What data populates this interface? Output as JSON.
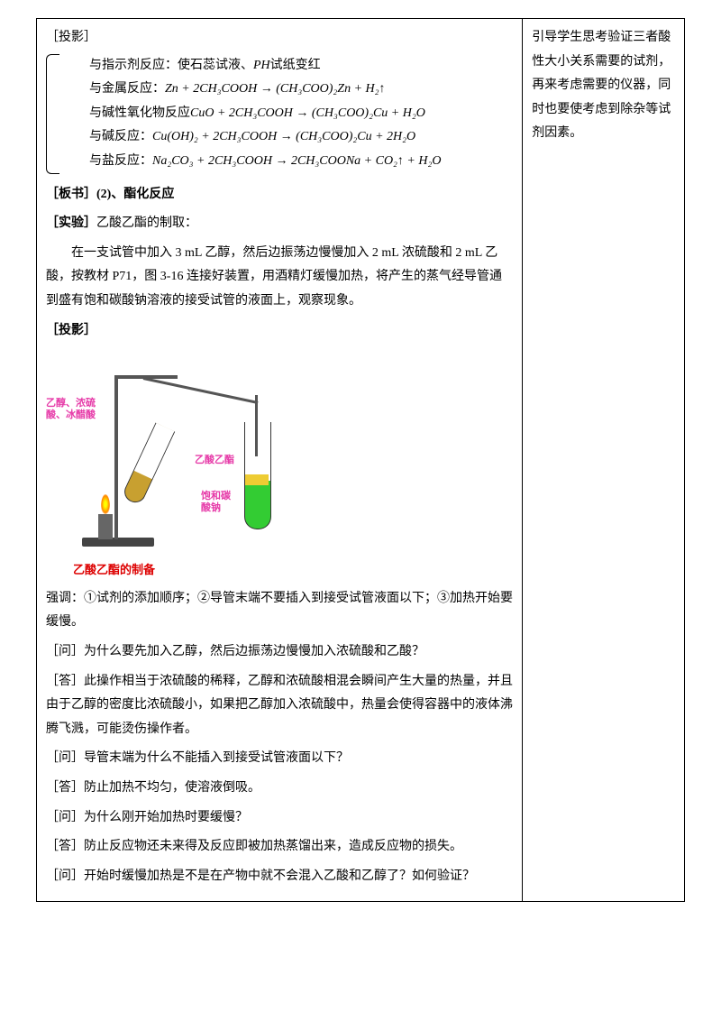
{
  "left": {
    "proj1_label": "［投影］",
    "reactions": {
      "r1_cn": "与指示剂反应：使石蕊试液、",
      "r1_eq": "PH",
      "r1_cn2": "试纸变红",
      "r2_cn": "与金属反应：",
      "r2_eq": "Zn + 2CH₃COOH → (CH₃COO)₂Zn + H₂↑",
      "r3_cn": "与碱性氧化物反应",
      "r3_eq": "CuO + 2CH₃COOH → (CH₃COO)₂Cu + H₂O",
      "r4_cn": "与碱反应：",
      "r4_eq": "Cu(OH)₂ + 2CH₃COOH → (CH₃COO)₂Cu + 2H₂O",
      "r5_cn": "与盐反应：",
      "r5_eq": "Na₂CO₃ + 2CH₃COOH → 2CH₃COONa + CO₂↑ + H₂O"
    },
    "board_label": "［板书］(2)、酯化反应",
    "exp_label": "［实验］",
    "exp_title": "乙酸乙酯的制取：",
    "exp_body": "　　在一支试管中加入 3 mL 乙醇，然后边振荡边慢慢加入 2 mL 浓硫酸和 2 mL 乙酸，按教材 P71，图 3-16 连接好装置，用酒精灯缓慢加热，将产生的蒸气经导管通到盛有饱和碳酸钠溶液的接受试管的液面上，观察现象。",
    "proj2_label": "［投影］",
    "apparatus": {
      "lbl_mix": "乙醇、浓硫\n酸、冰醋酸",
      "lbl_ester": "乙酸乙酯",
      "lbl_soda": "饱和碳\n酸钠",
      "caption": "乙酸乙酯的制备"
    },
    "emphasis": "强调：①试剂的添加顺序；②导管末端不要插入到接受试管液面以下；③加热开始要缓慢。",
    "qa": [
      {
        "q": "［问］为什么要先加入乙醇，然后边振荡边慢慢加入浓硫酸和乙酸？",
        "a": "［答］此操作相当于浓硫酸的稀释，乙醇和浓硫酸相混会瞬间产生大量的热量，并且由于乙醇的密度比浓硫酸小，如果把乙醇加入浓硫酸中，热量会使得容器中的液体沸腾飞溅，可能烫伤操作者。"
      },
      {
        "q": "［问］导管末端为什么不能插入到接受试管液面以下？",
        "a": "［答］防止加热不均匀，使溶液倒吸。"
      },
      {
        "q": "［问］为什么刚开始加热时要缓慢？",
        "a": "［答］防止反应物还未来得及反应即被加热蒸馏出来，造成反应物的损失。"
      },
      {
        "q": "［问］开始时缓慢加热是不是在产物中就不会混入乙酸和乙醇了？如何验证？",
        "a": ""
      }
    ]
  },
  "right": {
    "note": "引导学生思考验证三者酸性大小关系需要的试剂，再来考虑需要的仪器，同时也要使考虑到除杂等试剂因素。"
  },
  "colors": {
    "pink": "#e63aa8",
    "red": "#d00",
    "liquid1": "#c8a030",
    "liquid2": "#33cc33",
    "ester": "#eecc33"
  }
}
